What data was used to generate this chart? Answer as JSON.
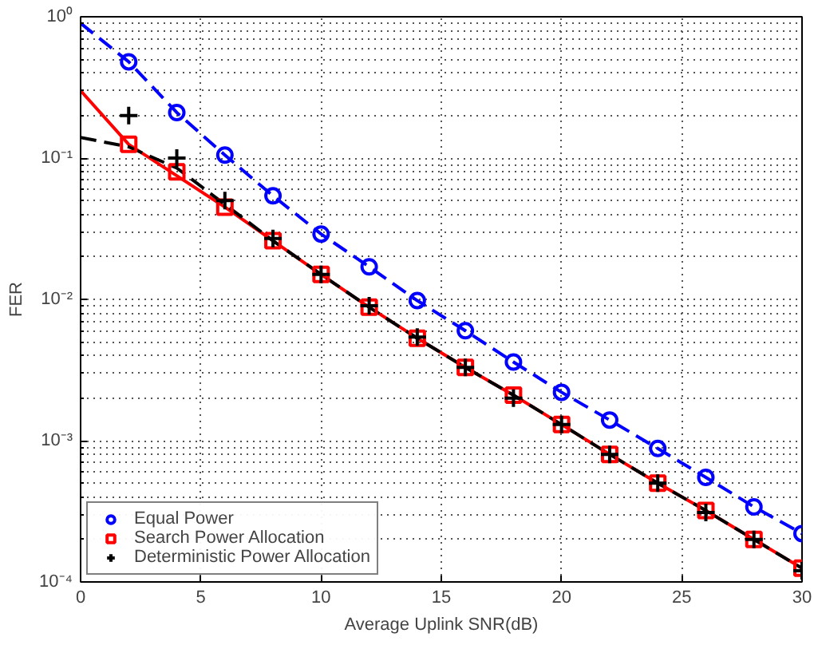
{
  "chart_data": {
    "type": "line",
    "xlabel": "Average Uplink SNR(dB)",
    "ylabel": "FER",
    "x": [
      0,
      2,
      4,
      6,
      8,
      10,
      12,
      14,
      16,
      18,
      20,
      22,
      24,
      26,
      28,
      30
    ],
    "series": [
      {
        "color": "#0000ff",
        "line_style": "dashed",
        "marker": "none",
        "values": [
          0.9,
          0.48,
          0.21,
          0.105,
          0.054,
          0.029,
          0.017,
          0.0098,
          0.006,
          0.0036,
          0.0022,
          0.0014,
          0.00088,
          0.00055,
          0.00034,
          0.00022
        ]
      },
      {
        "color": "#ff0000",
        "line_style": "solid",
        "marker": "none",
        "values": [
          0.3,
          0.125,
          0.075,
          0.045,
          0.026,
          0.015,
          0.0088,
          0.0053,
          0.0033,
          0.0021,
          0.0013,
          0.0008,
          0.0005,
          0.00032,
          0.0002,
          0.000125
        ]
      },
      {
        "color": "#000000",
        "line_style": "dashed",
        "marker": "none",
        "values": [
          0.14,
          0.12,
          0.085,
          0.047,
          0.026,
          0.015,
          0.0088,
          0.0053,
          0.0033,
          0.0021,
          0.0013,
          0.0008,
          0.0005,
          0.00032,
          0.0002,
          0.000125
        ]
      },
      {
        "type": "scatter",
        "name": "Equal Power",
        "color": "#0000ff",
        "marker": "circle",
        "values": [
          null,
          0.48,
          0.21,
          0.105,
          0.054,
          0.029,
          0.017,
          0.0098,
          0.006,
          0.0036,
          0.0022,
          0.0014,
          0.00088,
          0.00055,
          0.00034,
          0.00022
        ]
      },
      {
        "type": "scatter",
        "name": "Search Power Allocation",
        "color": "#ff0000",
        "marker": "square",
        "values": [
          null,
          0.125,
          0.08,
          0.045,
          0.026,
          0.015,
          0.0088,
          0.0053,
          0.0033,
          0.0021,
          0.0013,
          0.0008,
          0.0005,
          0.00032,
          0.0002,
          0.000125
        ]
      },
      {
        "type": "scatter",
        "name": "Deterministic Power Allocation",
        "color": "#000000",
        "marker": "cross",
        "values": [
          null,
          0.2,
          0.1,
          0.05,
          0.027,
          0.015,
          0.009,
          0.0054,
          0.0033,
          0.002,
          0.0013,
          0.0008,
          0.0005,
          0.00031,
          0.0002,
          0.00012
        ]
      }
    ],
    "xlim": [
      0,
      30
    ],
    "xticks": [
      0,
      5,
      10,
      15,
      20,
      25,
      30
    ],
    "ylim": [
      0.0001,
      1
    ],
    "yticks": [
      {
        "value": 0.0001,
        "label": "10⁻⁴"
      },
      {
        "value": 0.001,
        "label": "10⁻³"
      },
      {
        "value": 0.01,
        "label": "10⁻²"
      },
      {
        "value": 0.1,
        "label": "10⁻¹"
      },
      {
        "value": 1,
        "label": "10⁰"
      }
    ],
    "log": "y",
    "grid": true,
    "legend": "bottom left"
  }
}
